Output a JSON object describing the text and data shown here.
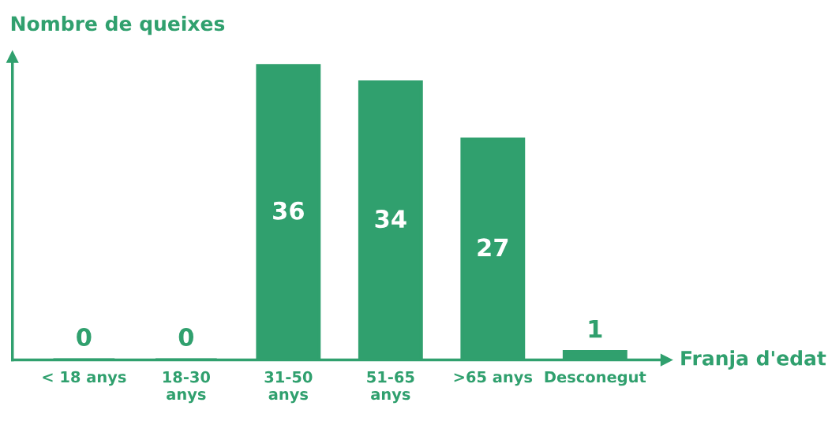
{
  "chart_data": {
    "type": "bar",
    "ylabel": "Nombre de queixes",
    "xlabel": "Franja d'edat",
    "categories": [
      "< 18 anys",
      "18-30 anys",
      "31-50 anys",
      "51-65 anys",
      ">65 anys",
      "Desconegut"
    ],
    "values": [
      0,
      0,
      36,
      34,
      27,
      1
    ],
    "color": "#30a06e",
    "data_labels": true,
    "tick_labels": "x"
  }
}
